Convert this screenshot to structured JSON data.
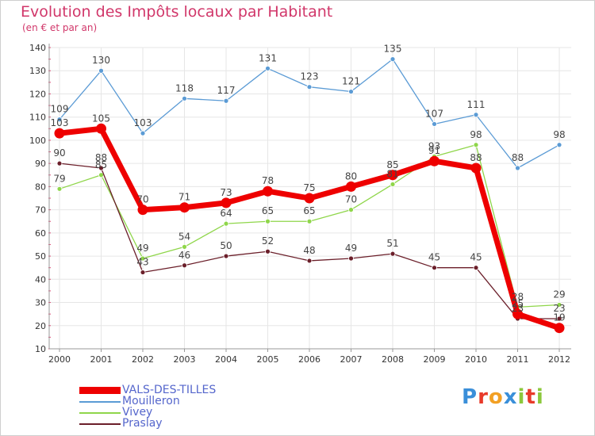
{
  "header": {
    "title": "Evolution des Impôts locaux par Habitant",
    "subtitle": "(en € et par an)"
  },
  "chart_data": {
    "type": "line",
    "title": "Evolution des Impôts locaux par Habitant",
    "subtitle": "(en € et par an)",
    "xlabel": "",
    "ylabel": "",
    "x": [
      2000,
      2001,
      2002,
      2003,
      2004,
      2005,
      2006,
      2007,
      2008,
      2009,
      2010,
      2011,
      2012
    ],
    "ylim": [
      10,
      140
    ],
    "yticks": [
      10,
      20,
      30,
      40,
      50,
      60,
      70,
      80,
      90,
      100,
      110,
      120,
      130,
      140
    ],
    "grid": true,
    "legend": "bottom-left",
    "series": [
      {
        "name": "Mouilleron",
        "color": "#5b9bd5",
        "values": [
          109,
          130,
          103,
          118,
          117,
          131,
          123,
          121,
          135,
          107,
          111,
          88,
          98
        ]
      },
      {
        "name": "Vivey",
        "color": "#8fd64a",
        "values": [
          79,
          85,
          49,
          54,
          64,
          65,
          65,
          70,
          81,
          93,
          98,
          28,
          29
        ]
      },
      {
        "name": "Praslay",
        "color": "#6b1f2a",
        "values": [
          90,
          88,
          43,
          46,
          50,
          52,
          48,
          49,
          51,
          45,
          45,
          23,
          23
        ]
      },
      {
        "name": "VALS-DES-TILLES",
        "color": "#ee0000",
        "values": [
          103,
          105,
          70,
          71,
          73,
          78,
          75,
          80,
          85,
          91,
          88,
          25,
          19
        ]
      }
    ]
  },
  "brand": {
    "letters": [
      "P",
      "r",
      "o",
      "x",
      "i",
      "t",
      "i"
    ],
    "colors": [
      "#3a8fd9",
      "#e83a2a",
      "#f2a024",
      "#3a8fd9",
      "#8cc83c",
      "#e83a2a",
      "#8cc83c"
    ]
  }
}
